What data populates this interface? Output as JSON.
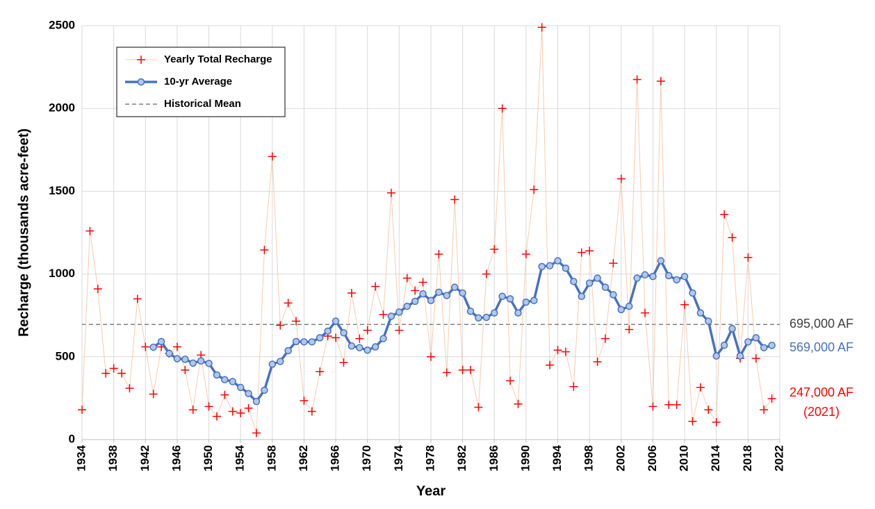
{
  "chart_data": {
    "type": "line",
    "xlabel": "Year",
    "ylabel": "Recharge (thousands acre-feet)",
    "x": [
      1934,
      1935,
      1936,
      1937,
      1938,
      1939,
      1940,
      1941,
      1942,
      1943,
      1944,
      1945,
      1946,
      1947,
      1948,
      1949,
      1950,
      1951,
      1952,
      1953,
      1954,
      1955,
      1956,
      1957,
      1958,
      1959,
      1960,
      1961,
      1962,
      1963,
      1964,
      1965,
      1966,
      1967,
      1968,
      1969,
      1970,
      1971,
      1972,
      1973,
      1974,
      1975,
      1976,
      1977,
      1978,
      1979,
      1980,
      1981,
      1982,
      1983,
      1984,
      1985,
      1986,
      1987,
      1988,
      1989,
      1990,
      1991,
      1992,
      1993,
      1994,
      1995,
      1996,
      1997,
      1998,
      1999,
      2000,
      2001,
      2002,
      2003,
      2004,
      2005,
      2006,
      2007,
      2008,
      2009,
      2010,
      2011,
      2012,
      2013,
      2014,
      2015,
      2016,
      2017,
      2018,
      2019,
      2020,
      2021
    ],
    "xlim": [
      1934,
      2022
    ],
    "xticks": [
      1934,
      1938,
      1942,
      1946,
      1950,
      1954,
      1958,
      1962,
      1966,
      1970,
      1974,
      1978,
      1982,
      1986,
      1990,
      1994,
      1998,
      2002,
      2006,
      2010,
      2014,
      2018,
      2022
    ],
    "ylim": [
      0,
      2500
    ],
    "yticks": [
      0,
      500,
      1000,
      1500,
      2000,
      2500
    ],
    "grid": true,
    "series": [
      {
        "name": "Yearly Total Recharge",
        "color": "#ff0000",
        "line_color": "#f8cbad",
        "values": [
          180,
          1260,
          910,
          400,
          430,
          400,
          310,
          850,
          560,
          275,
          560,
          520,
          560,
          420,
          180,
          510,
          200,
          140,
          270,
          170,
          160,
          190,
          40,
          1145,
          1710,
          690,
          825,
          715,
          235,
          170,
          410,
          625,
          615,
          465,
          885,
          610,
          660,
          925,
          755,
          1490,
          660,
          975,
          900,
          950,
          500,
          1120,
          405,
          1450,
          420,
          420,
          195,
          1000,
          1150,
          2000,
          355,
          215,
          1120,
          1510,
          2490,
          450,
          540,
          530,
          320,
          1130,
          1140,
          470,
          610,
          1065,
          1575,
          665,
          2175,
          765,
          200,
          2165,
          210,
          210,
          815,
          110,
          315,
          180,
          105,
          1360,
          1220,
          490,
          1100,
          490,
          180,
          247
        ]
      },
      {
        "name": "10-yr Average",
        "color": "#4472c4",
        "marker_fill": "#b4c7e7",
        "values": [
          null,
          null,
          null,
          null,
          null,
          null,
          null,
          null,
          null,
          558,
          592,
          520,
          488,
          485,
          462,
          475,
          460,
          390,
          362,
          350,
          315,
          278,
          230,
          298,
          455,
          472,
          537,
          592,
          590,
          590,
          615,
          655,
          715,
          645,
          565,
          555,
          540,
          560,
          610,
          745,
          770,
          805,
          835,
          880,
          840,
          890,
          870,
          920,
          885,
          775,
          735,
          738,
          765,
          865,
          850,
          765,
          830,
          840,
          1045,
          1050,
          1080,
          1035,
          955,
          865,
          945,
          975,
          920,
          875,
          785,
          805,
          975,
          995,
          985,
          1080,
          990,
          965,
          985,
          885,
          765,
          715,
          505,
          570,
          670,
          505,
          590,
          615,
          555,
          569
        ]
      }
    ],
    "historical_mean": {
      "name": "Historical Mean",
      "value": 695,
      "color": "#7f7f7f"
    },
    "annotations": [
      {
        "text": "695,000 AF",
        "color": "#404040"
      },
      {
        "text": "569,000 AF",
        "color": "#4472c4"
      },
      {
        "text": "247,000 AF",
        "color": "#ff0000"
      },
      {
        "text": "(2021)",
        "color": "#ff0000"
      }
    ]
  }
}
